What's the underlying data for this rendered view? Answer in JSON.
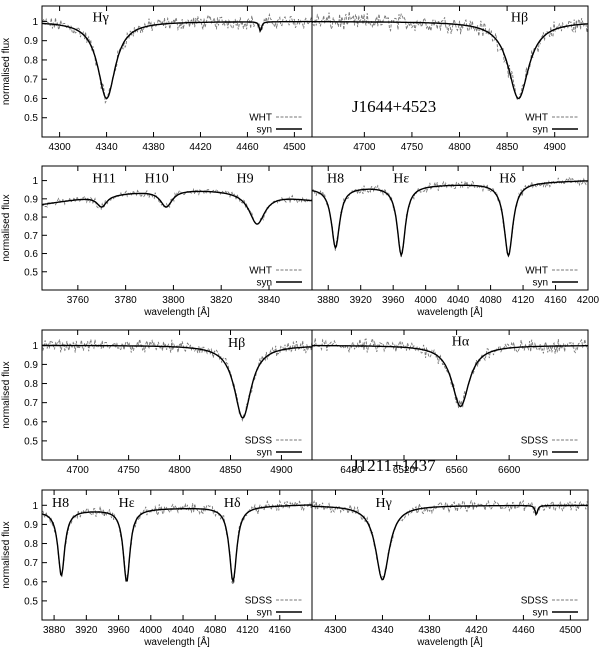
{
  "figure": {
    "ylabel": "normalised flux",
    "xlabel": "wavelength [Å]",
    "groups": [
      {
        "id": "top",
        "object": "J1644+4523"
      },
      {
        "id": "bottom",
        "object": "J1211+1437"
      }
    ]
  },
  "chart_data": [
    {
      "type": "line",
      "group": "top",
      "xlim": [
        4285,
        4515
      ],
      "ylim": [
        0.4,
        1.08
      ],
      "xticks": [
        "4300",
        "4340",
        "4380",
        "4420",
        "4460",
        "4500"
      ],
      "yticks": [
        "0.5",
        "0.6",
        "0.7",
        "0.8",
        "0.9",
        "1"
      ],
      "line_labels": [
        {
          "text": "Hγ",
          "x": 4335,
          "y": 1.0
        }
      ],
      "lines": [
        {
          "center": 4340,
          "depth": 0.4,
          "width": 9
        },
        {
          "center": 4471,
          "depth": 0.05,
          "width": 1.2
        }
      ],
      "base": {
        "type": "flat",
        "value": 1.0,
        "slope": 0.0
      },
      "noise": 0.04,
      "series": [
        {
          "name": "WHT",
          "style": "dashed"
        },
        {
          "name": "syn",
          "style": "solid"
        }
      ],
      "show_xlabel": false,
      "show_ylabel": true,
      "show_legend": true
    },
    {
      "type": "line",
      "group": "top",
      "xlim": [
        4645,
        4935
      ],
      "ylim": [
        0.4,
        1.08
      ],
      "xticks": [
        "4700",
        "4750",
        "4800",
        "4850",
        "4900"
      ],
      "yticks": [],
      "line_labels": [
        {
          "text": "Hβ",
          "x": 4863,
          "y": 1.0
        }
      ],
      "lines": [
        {
          "center": 4862,
          "depth": 0.4,
          "width": 13
        }
      ],
      "base": {
        "type": "flat",
        "value": 1.0,
        "slope": 0.0
      },
      "noise": 0.05,
      "series": [
        {
          "name": "WHT",
          "style": "dashed"
        },
        {
          "name": "syn",
          "style": "solid"
        }
      ],
      "show_xlabel": false,
      "show_ylabel": false,
      "show_legend": true,
      "object_label": {
        "x": 4720,
        "y": 0.65
      }
    },
    {
      "type": "line",
      "group": "top",
      "xlim": [
        3745,
        3858
      ],
      "ylim": [
        0.4,
        1.08
      ],
      "xticks": [
        "3760",
        "3780",
        "3800",
        "3820",
        "3840"
      ],
      "yticks": [
        "0.5",
        "0.6",
        "0.7",
        "0.8",
        "0.9",
        "1"
      ],
      "line_labels": [
        {
          "text": "H11",
          "x": 3771,
          "y": 0.99
        },
        {
          "text": "H10",
          "x": 3793,
          "y": 0.99
        },
        {
          "text": "H9",
          "x": 3830,
          "y": 0.99
        }
      ],
      "lines": [
        {
          "center": 3770,
          "depth": 0.06,
          "width": 2.5
        },
        {
          "center": 3797,
          "depth": 0.09,
          "width": 3
        },
        {
          "center": 3835,
          "depth": 0.17,
          "width": 4
        }
      ],
      "base": {
        "type": "hump",
        "value": 0.87,
        "slope": 0.0
      },
      "noise": 0.02,
      "series": [
        {
          "name": "WHT",
          "style": "dashed"
        },
        {
          "name": "syn",
          "style": "solid"
        }
      ],
      "show_xlabel": true,
      "show_ylabel": true,
      "show_legend": true
    },
    {
      "type": "line",
      "group": "top",
      "xlim": [
        3860,
        4200
      ],
      "ylim": [
        0.4,
        1.08
      ],
      "xticks": [
        "3880",
        "3920",
        "3960",
        "4000",
        "4040",
        "4080",
        "4120",
        "4160",
        "4200"
      ],
      "yticks": [],
      "line_labels": [
        {
          "text": "H8",
          "x": 3889,
          "y": 0.99
        },
        {
          "text": "Hε",
          "x": 3970,
          "y": 0.99
        },
        {
          "text": "Hδ",
          "x": 4101,
          "y": 0.99
        }
      ],
      "lines": [
        {
          "center": 3889,
          "depth": 0.33,
          "width": 6
        },
        {
          "center": 3970,
          "depth": 0.38,
          "width": 6
        },
        {
          "center": 4102,
          "depth": 0.4,
          "width": 6.5
        }
      ],
      "base": {
        "type": "linear",
        "value": 0.96,
        "slope": 0.00012
      },
      "noise": 0.025,
      "series": [
        {
          "name": "WHT",
          "style": "dashed"
        },
        {
          "name": "syn",
          "style": "solid"
        }
      ],
      "show_xlabel": true,
      "show_ylabel": false,
      "show_legend": true
    },
    {
      "type": "line",
      "group": "bottom",
      "xlim": [
        4665,
        4930
      ],
      "ylim": [
        0.4,
        1.08
      ],
      "xticks": [
        "4700",
        "4750",
        "4800",
        "4850",
        "4900"
      ],
      "yticks": [
        "0.5",
        "0.6",
        "0.7",
        "0.8",
        "0.9",
        "1"
      ],
      "line_labels": [
        {
          "text": "Hβ",
          "x": 4856,
          "y": 0.99
        }
      ],
      "lines": [
        {
          "center": 4862,
          "depth": 0.38,
          "width": 10
        }
      ],
      "base": {
        "type": "flat",
        "value": 1.0,
        "slope": 0.0
      },
      "noise": 0.035,
      "series": [
        {
          "name": "SDSS",
          "style": "dashed"
        },
        {
          "name": "syn",
          "style": "solid"
        }
      ],
      "show_xlabel": false,
      "show_ylabel": true,
      "show_legend": true
    },
    {
      "type": "line",
      "group": "bottom",
      "xlim": [
        6450,
        6660
      ],
      "ylim": [
        0.4,
        1.08
      ],
      "xticks": [
        "6480",
        "6520",
        "6560",
        "6600"
      ],
      "yticks": [],
      "line_labels": [
        {
          "text": "Hα",
          "x": 6563,
          "y": 1.0
        }
      ],
      "lines": [
        {
          "center": 6563,
          "depth": 0.32,
          "width": 8
        }
      ],
      "base": {
        "type": "flat",
        "value": 1.0,
        "slope": 0.0
      },
      "noise": 0.04,
      "series": [
        {
          "name": "SDSS",
          "style": "dashed"
        },
        {
          "name": "syn",
          "style": "solid"
        }
      ],
      "show_xlabel": false,
      "show_ylabel": false,
      "show_legend": true,
      "object_label": {
        "x": 6478,
        "y": 0.55
      }
    },
    {
      "type": "line",
      "group": "bottom",
      "xlim": [
        3865,
        4200
      ],
      "ylim": [
        0.4,
        1.08
      ],
      "xticks": [
        "3880",
        "3920",
        "3960",
        "4000",
        "4040",
        "4080",
        "4120",
        "4160"
      ],
      "yticks": [
        "0.5",
        "0.6",
        "0.7",
        "0.8",
        "0.9",
        "1"
      ],
      "line_labels": [
        {
          "text": "H8",
          "x": 3888,
          "y": 0.99
        },
        {
          "text": "Hε",
          "x": 3970,
          "y": 0.99
        },
        {
          "text": "Hδ",
          "x": 4101,
          "y": 0.99
        }
      ],
      "lines": [
        {
          "center": 3889,
          "depth": 0.34,
          "width": 5
        },
        {
          "center": 3970,
          "depth": 0.38,
          "width": 5
        },
        {
          "center": 4102,
          "depth": 0.39,
          "width": 5.5
        }
      ],
      "base": {
        "type": "linear",
        "value": 0.97,
        "slope": 0.0001
      },
      "noise": 0.03,
      "series": [
        {
          "name": "SDSS",
          "style": "dashed"
        },
        {
          "name": "syn",
          "style": "solid"
        }
      ],
      "show_xlabel": true,
      "show_ylabel": true,
      "show_legend": true
    },
    {
      "type": "line",
      "group": "bottom",
      "xlim": [
        4280,
        4515
      ],
      "ylim": [
        0.4,
        1.08
      ],
      "xticks": [
        "4300",
        "4340",
        "4380",
        "4420",
        "4460",
        "4500"
      ],
      "yticks": [],
      "line_labels": [
        {
          "text": "Hγ",
          "x": 4341,
          "y": 0.99
        }
      ],
      "lines": [
        {
          "center": 4340,
          "depth": 0.39,
          "width": 7
        },
        {
          "center": 4471,
          "depth": 0.05,
          "width": 1.2
        }
      ],
      "base": {
        "type": "flat",
        "value": 1.0,
        "slope": 0.0
      },
      "noise": 0.03,
      "series": [
        {
          "name": "SDSS",
          "style": "dashed"
        },
        {
          "name": "syn",
          "style": "solid"
        }
      ],
      "show_xlabel": true,
      "show_ylabel": false,
      "show_legend": true
    }
  ]
}
